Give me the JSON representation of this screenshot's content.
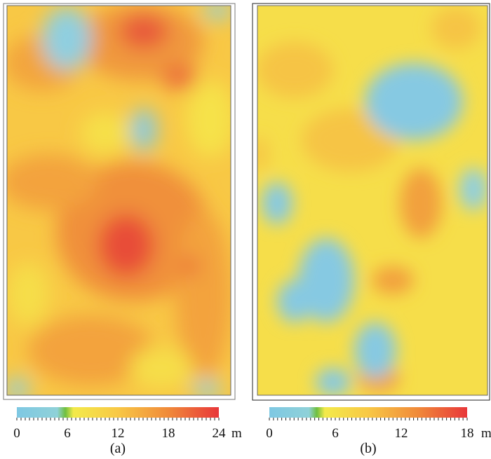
{
  "figure": {
    "panels": [
      {
        "label": "(a)",
        "colorbar": {
          "min": 0,
          "max": 24,
          "unit": "m",
          "ticks": [
            "0",
            "6",
            "12",
            "18",
            "24"
          ],
          "tick_values": [
            0,
            6,
            12,
            18,
            24
          ]
        }
      },
      {
        "label": "(b)",
        "colorbar": {
          "min": 0,
          "max": 18,
          "unit": "m",
          "ticks": [
            "0",
            "6",
            "12",
            "18"
          ],
          "tick_values": [
            0,
            6,
            12,
            18
          ]
        }
      }
    ],
    "colormap": [
      {
        "stop": 0.0,
        "color": "#7ec8e3"
      },
      {
        "stop": 0.2,
        "color": "#8fd1d8"
      },
      {
        "stop": 0.24,
        "color": "#6fbf3f"
      },
      {
        "stop": 0.28,
        "color": "#f3ea4a"
      },
      {
        "stop": 0.5,
        "color": "#f8c845"
      },
      {
        "stop": 0.75,
        "color": "#f08a3a"
      },
      {
        "stop": 1.0,
        "color": "#e8373a"
      }
    ]
  },
  "chart_data": [
    {
      "type": "heatmap",
      "panel": "(a)",
      "value_range": [
        0,
        24
      ],
      "unit": "m",
      "colorbar_ticks": [
        0,
        6,
        12,
        18,
        24
      ],
      "description_fields": {
        "dominant_level": 12,
        "low_regions": [
          5,
          5
        ],
        "high_regions": [
          21,
          22
        ]
      }
    },
    {
      "type": "heatmap",
      "panel": "(b)",
      "value_range": [
        0,
        18
      ],
      "unit": "m",
      "colorbar_ticks": [
        0,
        6,
        12,
        18
      ],
      "description_fields": {
        "dominant_level": 8,
        "low_regions": [
          4,
          4,
          4
        ],
        "high_regions": [
          13,
          14
        ]
      }
    }
  ]
}
